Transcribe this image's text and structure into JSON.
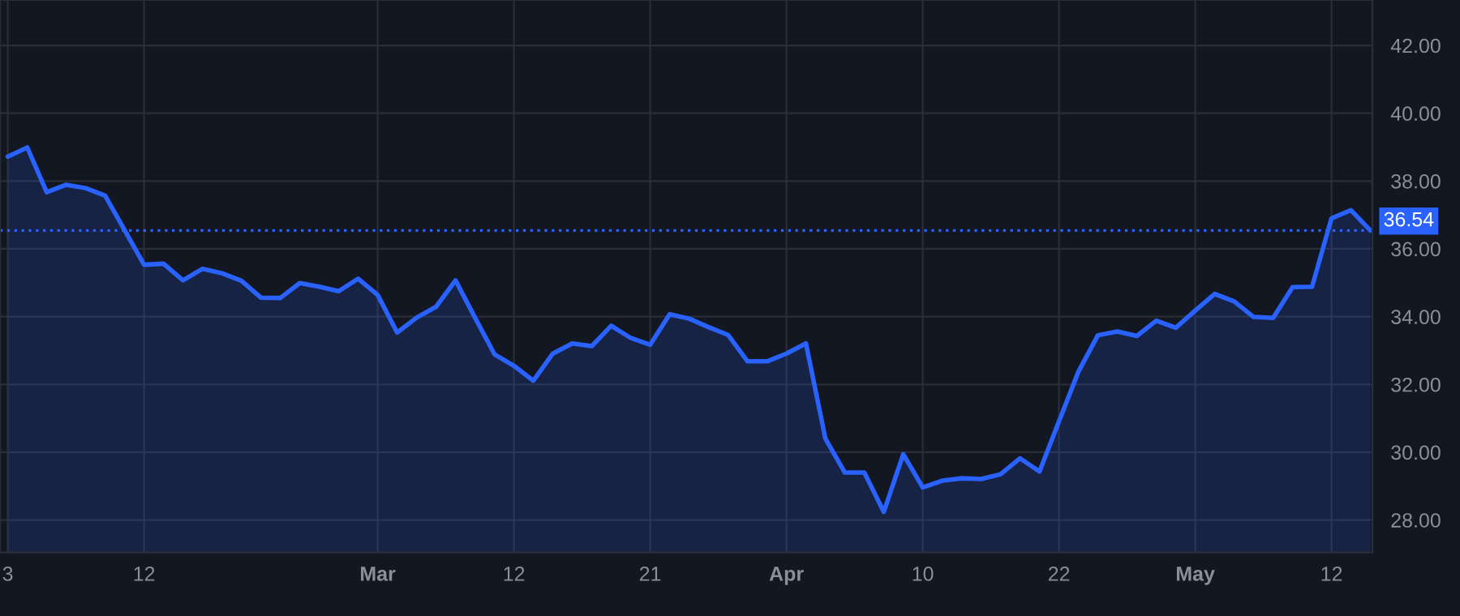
{
  "chart_data": {
    "type": "area",
    "categories": [
      "3",
      null,
      null,
      null,
      null,
      null,
      null,
      "12",
      null,
      null,
      null,
      null,
      null,
      null,
      null,
      null,
      null,
      null,
      null,
      "Mar",
      null,
      null,
      null,
      null,
      null,
      null,
      "12",
      null,
      null,
      null,
      null,
      null,
      null,
      "21",
      null,
      null,
      null,
      null,
      null,
      null,
      "Apr",
      null,
      null,
      null,
      null,
      null,
      null,
      "10",
      null,
      null,
      null,
      null,
      null,
      null,
      "22",
      null,
      null,
      null,
      null,
      null,
      null,
      "May",
      null,
      null,
      null,
      null,
      null,
      null,
      "12",
      null,
      null
    ],
    "series": [
      {
        "color": "#2962ff",
        "values": [
          38.72,
          38.99,
          37.67,
          37.89,
          37.79,
          37.57,
          36.55,
          35.53,
          35.56,
          35.07,
          35.41,
          35.28,
          35.06,
          34.56,
          34.55,
          34.99,
          34.88,
          34.75,
          35.12,
          34.64,
          33.53,
          33.97,
          34.29,
          35.07,
          33.97,
          32.89,
          32.55,
          32.11,
          32.91,
          33.21,
          33.13,
          33.73,
          33.37,
          33.17,
          34.07,
          33.94,
          33.69,
          33.46,
          32.68,
          32.68,
          32.91,
          33.21,
          30.4,
          29.4,
          29.4,
          28.24,
          29.94,
          28.96,
          29.16,
          29.23,
          29.21,
          29.35,
          29.82,
          29.43,
          30.91,
          32.38,
          33.45,
          33.56,
          33.43,
          33.88,
          33.67,
          34.18,
          34.67,
          34.45,
          33.99,
          33.96,
          34.87,
          34.88,
          36.9,
          37.14,
          36.54
        ]
      }
    ],
    "ylim": [
      27.04,
      43.34
    ],
    "yticks": [
      {
        "value": 28,
        "label": "28.00"
      },
      {
        "value": 30,
        "label": "30.00"
      },
      {
        "value": 32,
        "label": "32.00"
      },
      {
        "value": 34,
        "label": "34.00"
      },
      {
        "value": 36,
        "label": "36.00"
      },
      {
        "value": 38,
        "label": "38.00"
      },
      {
        "value": 40,
        "label": "40.00"
      },
      {
        "value": 42,
        "label": "42.00"
      }
    ],
    "ref_lines": [
      {
        "axis": "y",
        "value": 36.54,
        "label": "36.54",
        "color": "#2962ff",
        "line_style": "dotted"
      }
    ],
    "grid": true,
    "legend": false
  }
}
